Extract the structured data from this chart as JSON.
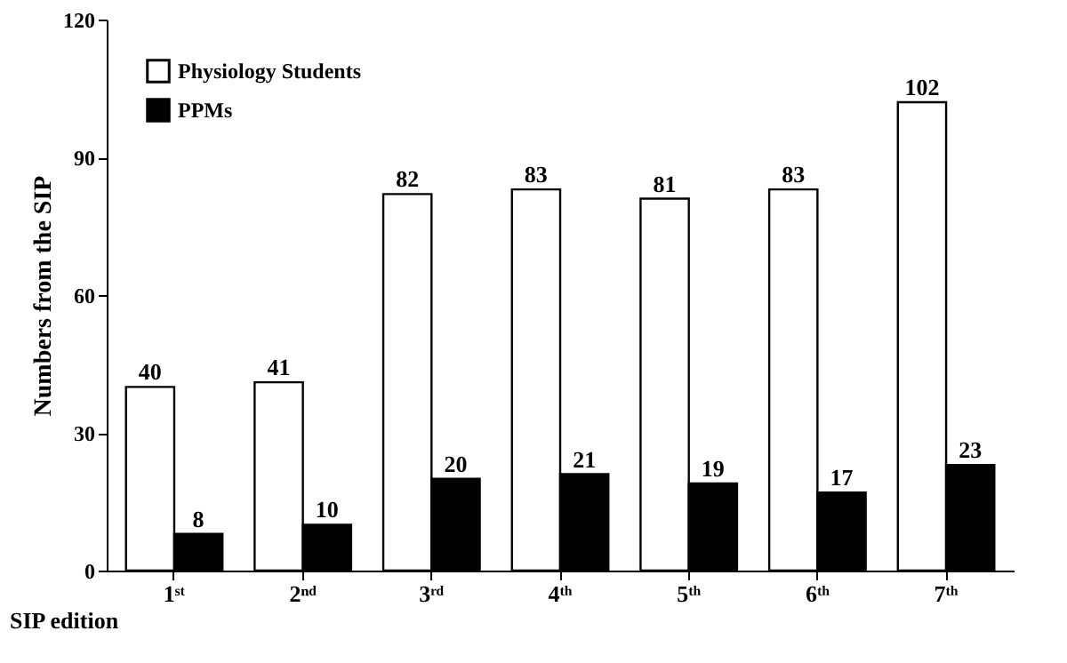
{
  "chart_data": {
    "type": "bar",
    "xlabel": "SIP edition",
    "ylabel": "Numbers from the SIP",
    "categories": [
      "1ˢᵗ",
      "2ⁿᵈ",
      "3ʳᵈ",
      "4ᵗʰ",
      "5ᵗʰ",
      "6ᵗʰ",
      "7ᵗʰ"
    ],
    "series": [
      {
        "name": "Physiology Students",
        "color": "#ffffff",
        "values": [
          40,
          41,
          82,
          83,
          81,
          83,
          102
        ]
      },
      {
        "name": "PPMs",
        "color": "#000000",
        "values": [
          8,
          10,
          20,
          21,
          19,
          17,
          23
        ]
      }
    ],
    "ylim": [
      0,
      120
    ],
    "yticks": [
      0,
      30,
      60,
      90,
      120
    ],
    "data_labels": true,
    "legend": "top left",
    "grid": false
  }
}
